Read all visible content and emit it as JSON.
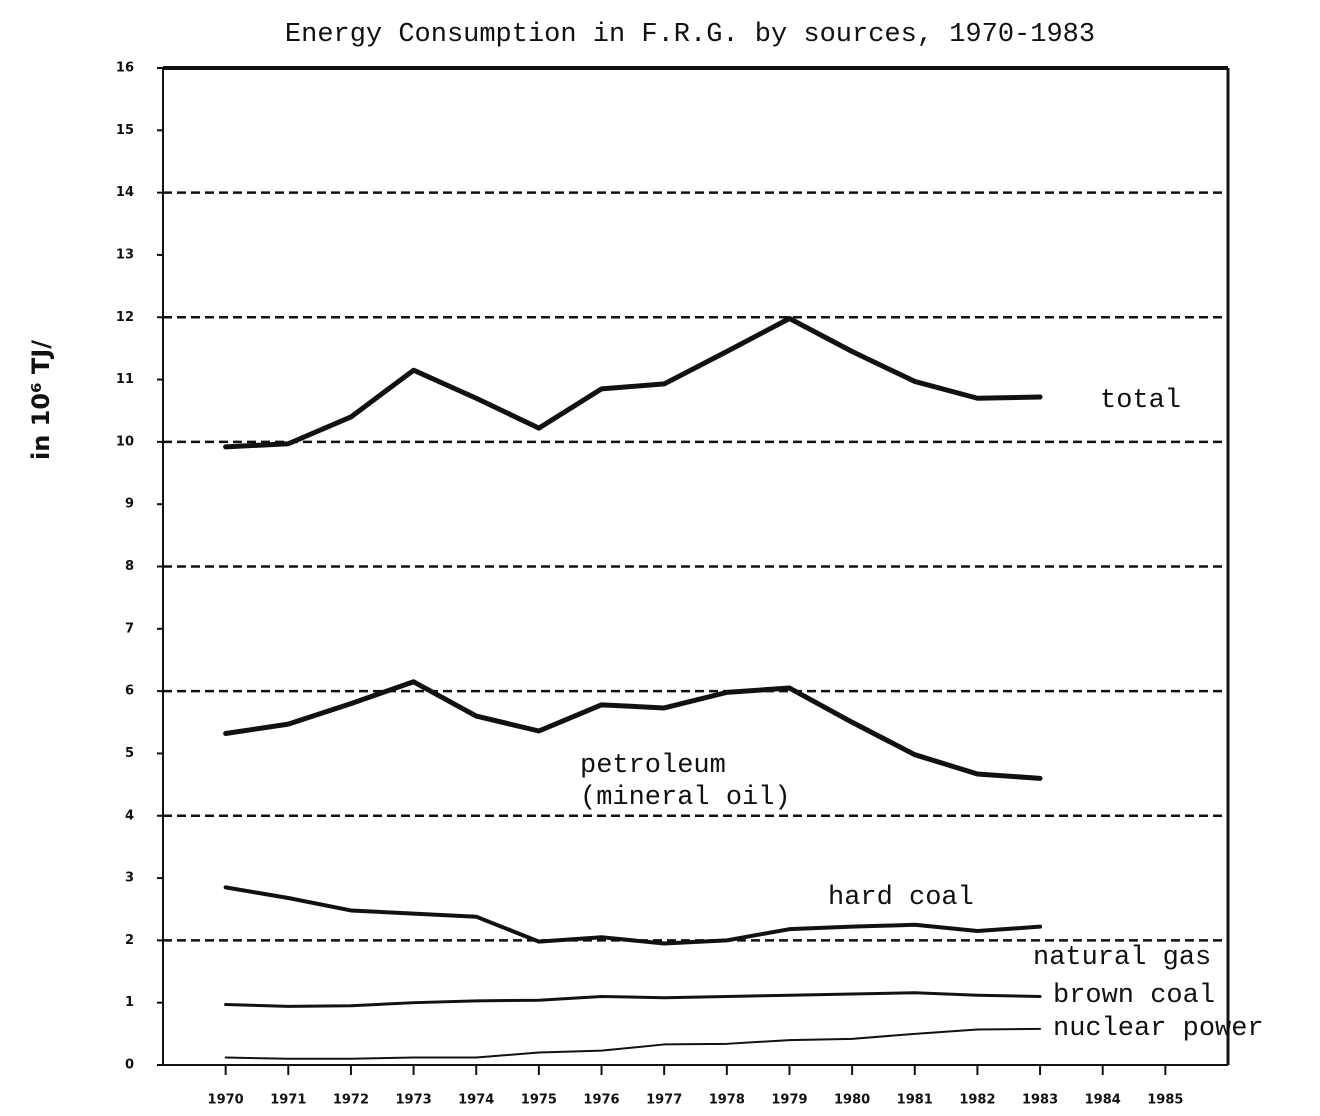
{
  "chart_data": {
    "type": "line",
    "title": "Energy Consumption in F.R.G. by sources, 1970-1983",
    "y_label": "in 10⁶ TJ/",
    "x": [
      1970,
      1971,
      1972,
      1973,
      1974,
      1975,
      1976,
      1977,
      1978,
      1979,
      1980,
      1981,
      1982,
      1983
    ],
    "series": [
      {
        "name": "total",
        "color": "#111111",
        "line_width": 5,
        "values": [
          9.92,
          9.97,
          10.4,
          11.15,
          10.7,
          10.22,
          10.85,
          10.93,
          11.45,
          11.98,
          11.45,
          10.97,
          10.7,
          10.72
        ]
      },
      {
        "name": "petroleum (mineral oil)",
        "color": "#111111",
        "line_width": 5,
        "values": [
          5.32,
          5.47,
          5.8,
          6.15,
          5.6,
          5.36,
          5.78,
          5.73,
          5.98,
          6.05,
          5.5,
          4.98,
          4.67,
          4.6
        ]
      },
      {
        "name": "hard coal",
        "color": "#111111",
        "line_width": 4,
        "values": [
          2.85,
          2.68,
          2.48,
          2.43,
          2.38,
          1.98,
          2.05,
          1.95,
          2.0,
          2.18,
          2.22,
          2.25,
          2.15,
          2.22
        ]
      },
      {
        "name": "brown coal",
        "color": "#111111",
        "line_width": 3,
        "values": [
          0.97,
          0.94,
          0.95,
          1.0,
          1.03,
          1.04,
          1.1,
          1.08,
          1.1,
          1.12,
          1.14,
          1.16,
          1.12,
          1.1
        ]
      },
      {
        "name": "nuclear power",
        "color": "#111111",
        "line_width": 2,
        "values": [
          0.12,
          0.1,
          0.1,
          0.12,
          0.12,
          0.2,
          0.23,
          0.33,
          0.34,
          0.4,
          0.42,
          0.5,
          0.57,
          0.58
        ]
      }
    ],
    "annotations": [
      "natural gas"
    ],
    "xlim": [
      1969,
      1986
    ],
    "xticks": [
      1970,
      1971,
      1972,
      1973,
      1974,
      1975,
      1976,
      1977,
      1978,
      1979,
      1980,
      1981,
      1982,
      1983,
      1984,
      1985
    ],
    "ylim": [
      0,
      16
    ],
    "yticks": [
      0,
      1,
      2,
      3,
      4,
      5,
      6,
      7,
      8,
      9,
      10,
      11,
      12,
      13,
      14,
      15,
      16
    ],
    "ygrid": [
      2,
      4,
      6,
      8,
      10,
      12,
      14
    ]
  }
}
